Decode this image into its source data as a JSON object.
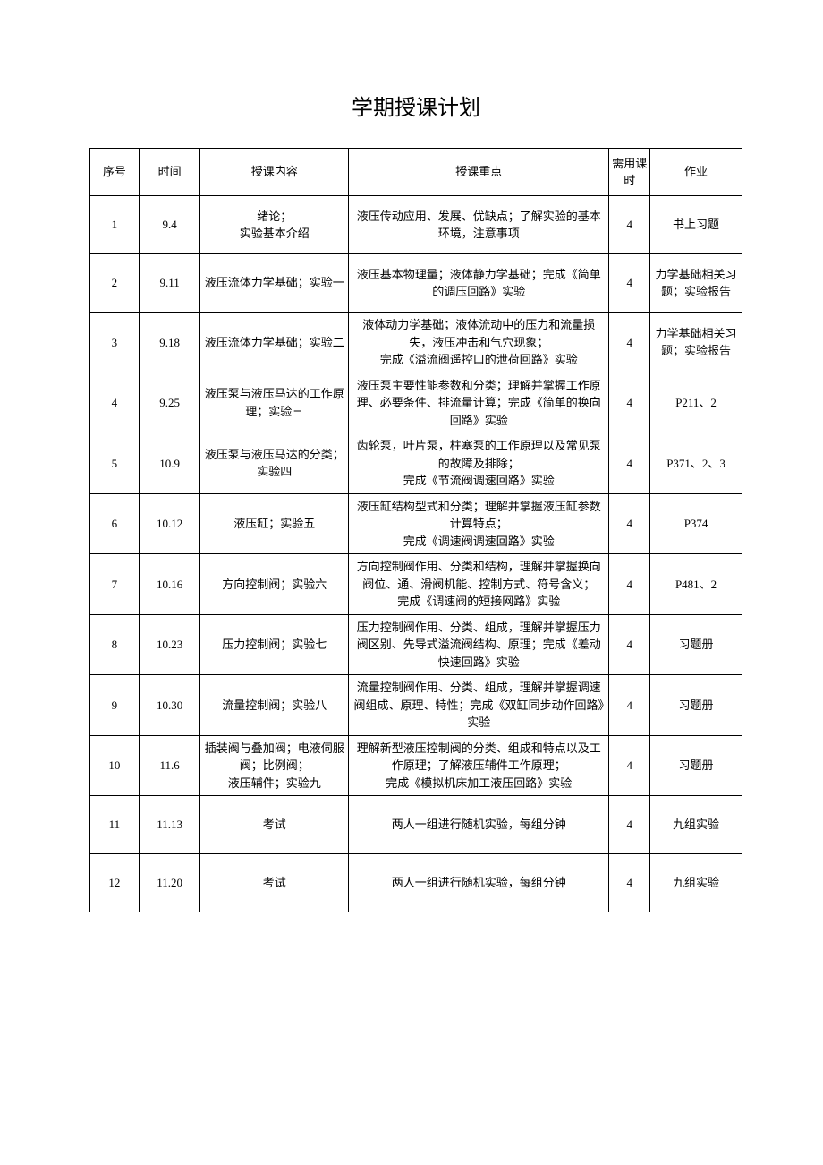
{
  "title": "学期授课计划",
  "columns": [
    "序号",
    "时间",
    "授课内容",
    "授课重点",
    "需用课时",
    "作业"
  ],
  "rows": [
    {
      "seq": "1",
      "time": "9.4",
      "content": "绪论；\n实验基本介绍",
      "focus": "液压传动应用、发展、优缺点；了解实验的基本环境，注意事项",
      "hours": "4",
      "homework": "书上习题"
    },
    {
      "seq": "2",
      "time": "9.11",
      "content": "液压流体力学基础；实验一",
      "focus": "液压基本物理量；液体静力学基础；完成《简单的调压回路》实验",
      "hours": "4",
      "homework": "力学基础相关习题；实验报告"
    },
    {
      "seq": "3",
      "time": "9.18",
      "content": "液压流体力学基础；实验二",
      "focus": "液体动力学基础；液体流动中的压力和流量损失，液压冲击和气穴现象；\n完成《溢流阀遥控口的泄荷回路》实验",
      "hours": "4",
      "homework": "力学基础相关习题；实验报告"
    },
    {
      "seq": "4",
      "time": "9.25",
      "content": "液压泵与液压马达的工作原理；实验三",
      "focus": "液压泵主要性能参数和分类；理解并掌握工作原理、必要条件、排流量计算；完成《简单的换向回路》实验",
      "hours": "4",
      "homework": "P211、2"
    },
    {
      "seq": "5",
      "time": "10.9",
      "content": "液压泵与液压马达的分类；实验四",
      "focus": "齿轮泵，叶片泵，柱塞泵的工作原理以及常见泵的故障及排除；\n完成《节流阀调速回路》实验",
      "hours": "4",
      "homework": "P371、2、3"
    },
    {
      "seq": "6",
      "time": "10.12",
      "content": "液压缸；实验五",
      "focus": "液压缸结构型式和分类；理解并掌握液压缸参数计算特点；\n完成《调速阀调速回路》实验",
      "hours": "4",
      "homework": "P374"
    },
    {
      "seq": "7",
      "time": "10.16",
      "content": "方向控制阀；实验六",
      "focus": "方向控制阀作用、分类和结构，理解并掌握换向阀位、通、滑阀机能、控制方式、符号含义；\n完成《调速阀的短接网路》实验",
      "hours": "4",
      "homework": "P481、2"
    },
    {
      "seq": "8",
      "time": "10.23",
      "content": "压力控制阀；实验七",
      "focus": "压力控制阀作用、分类、组成，理解并掌握压力阀区别、先导式溢流阀结构、原理；完成《差动快速回路》实验",
      "hours": "4",
      "homework": "习题册"
    },
    {
      "seq": "9",
      "time": "10.30",
      "content": "流量控制阀；实验八",
      "focus": "流量控制阀作用、分类、组成，理解并掌握调速阀组成、原理、特性；完成《双缸同步动作回路》实验",
      "hours": "4",
      "homework": "习题册"
    },
    {
      "seq": "10",
      "time": "11.6",
      "content": "插装阀与叠加阀；电液伺服阀；比例阀；\n液压辅件；实验九",
      "focus": "理解新型液压控制阀的分类、组成和特点以及工作原理；了解液压辅件工作原理；\n完成《模拟机床加工液压回路》实验",
      "hours": "4",
      "homework": "习题册"
    },
    {
      "seq": "11",
      "time": "11.13",
      "content": "考试",
      "focus": "两人一组进行随机实验，每组分钟",
      "hours": "4",
      "homework": "九组实验"
    },
    {
      "seq": "12",
      "time": "11.20",
      "content": "考试",
      "focus": "两人一组进行随机实验，每组分钟",
      "hours": "4",
      "homework": "九组实验"
    }
  ]
}
